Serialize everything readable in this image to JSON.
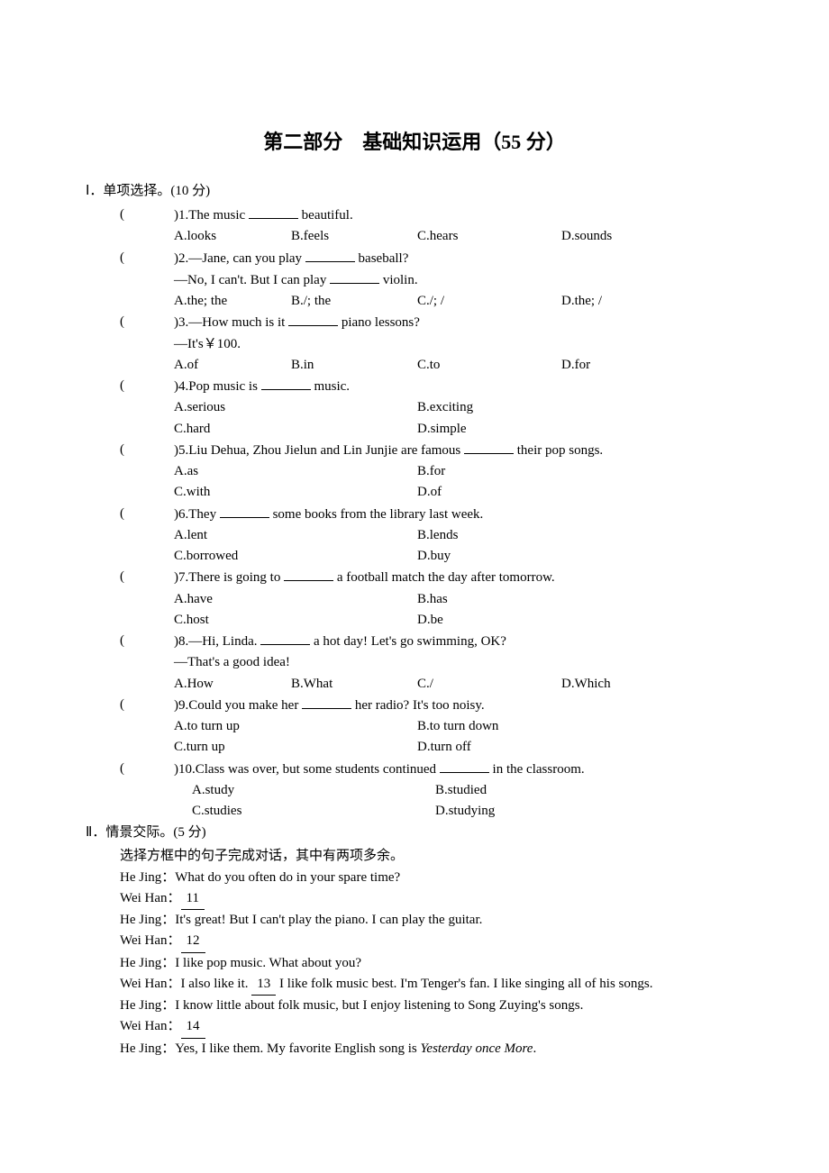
{
  "title": "第二部分　基础知识运用（55 分）",
  "section1": {
    "heading": "Ⅰ．单项选择。(10 分)",
    "questions": [
      {
        "num": "1",
        "stem_a": "The music ",
        "stem_b": " beautiful.",
        "layout": "4",
        "opts": [
          "A.looks",
          "B.feels",
          "C.hears",
          "D.sounds"
        ]
      },
      {
        "num": "2",
        "line1_a": "—Jane, can you play ",
        "line1_b": " baseball?",
        "line2_a": "—No, I can't. But I can play ",
        "line2_b": " violin.",
        "layout": "4",
        "opts": [
          "A.the; the",
          "B./; the",
          "C./; /",
          "D.the; /"
        ]
      },
      {
        "num": "3",
        "line1_a": "—How much is it ",
        "line1_b": " piano lessons?",
        "line2": "—It's￥100.",
        "layout": "4",
        "opts": [
          "A.of",
          "B.in",
          "C.to",
          "D.for"
        ]
      },
      {
        "num": "4",
        "stem_a": "Pop music is ",
        "stem_b": " music.",
        "layout": "2x2",
        "opts": [
          "A.serious",
          "B.exciting",
          "C.hard",
          "D.simple"
        ]
      },
      {
        "num": "5",
        "stem_a": "Liu Dehua, Zhou Jielun and Lin Junjie are famous ",
        "stem_b": " their pop songs.",
        "layout": "2x2",
        "opts": [
          "A.as",
          "B.for",
          "C.with",
          "D.of"
        ]
      },
      {
        "num": "6",
        "stem_a": "They ",
        "stem_b": " some books from the library last week.",
        "layout": "2x2",
        "opts": [
          "A.lent",
          "B.lends",
          "C.borrowed",
          "D.buy"
        ]
      },
      {
        "num": "7",
        "stem_a": "There is going to ",
        "stem_b": " a football match the day after tomorrow.",
        "layout": "2x2",
        "opts": [
          "A.have",
          "B.has",
          "C.host",
          "D.be"
        ]
      },
      {
        "num": "8",
        "line1_a": "—Hi, Linda. ",
        "line1_b": " a hot day! Let's go swimming, OK?",
        "line2": "—That's a good idea!",
        "layout": "4",
        "opts": [
          "A.How",
          "B.What",
          "C./",
          "D.Which"
        ]
      },
      {
        "num": "9",
        "stem_a": "Could you make her ",
        "stem_b": " her radio? It's too noisy.",
        "layout": "2x2",
        "opts": [
          "A.to turn up",
          "B.to turn down",
          "C.turn up",
          "D.turn off"
        ]
      },
      {
        "num": "10",
        "stem_a": "Class was over, but some students continued ",
        "stem_b": " in the classroom.",
        "layout": "2x2",
        "opts": [
          "A.study",
          "B.studied",
          "C.studies",
          "D.studying"
        ],
        "opt_indent": true
      }
    ]
  },
  "section2": {
    "heading": "Ⅱ．情景交际。(5 分)",
    "intro": "选择方框中的句子完成对话，其中有两项多余。",
    "dialogue": [
      {
        "speaker": "He Jing：",
        "text": "What do you often do in your spare time?"
      },
      {
        "speaker": "Wei Han：",
        "blank": "11"
      },
      {
        "speaker": "He Jing：",
        "text": "It's great! But I can't play the piano. I can play the guitar."
      },
      {
        "speaker": "Wei Han：",
        "blank": "12"
      },
      {
        "speaker": "He Jing：",
        "text": "I like pop music. What about you?"
      },
      {
        "speaker": "Wei Han：",
        "pre": "I also like it. ",
        "blank": "13",
        "post": " I like folk music best. I'm Tenger's fan. I like singing all of his songs."
      },
      {
        "speaker": "He Jing：",
        "text": "I know little about folk music, but I enjoy listening to Song Zuying's songs."
      },
      {
        "speaker": "Wei Han：",
        "blank": "14"
      },
      {
        "speaker": "He Jing：",
        "pre_plain": "Yes, I like them. My favorite English song is ",
        "italic": "Yesterday once More",
        "post_plain": "."
      }
    ]
  }
}
